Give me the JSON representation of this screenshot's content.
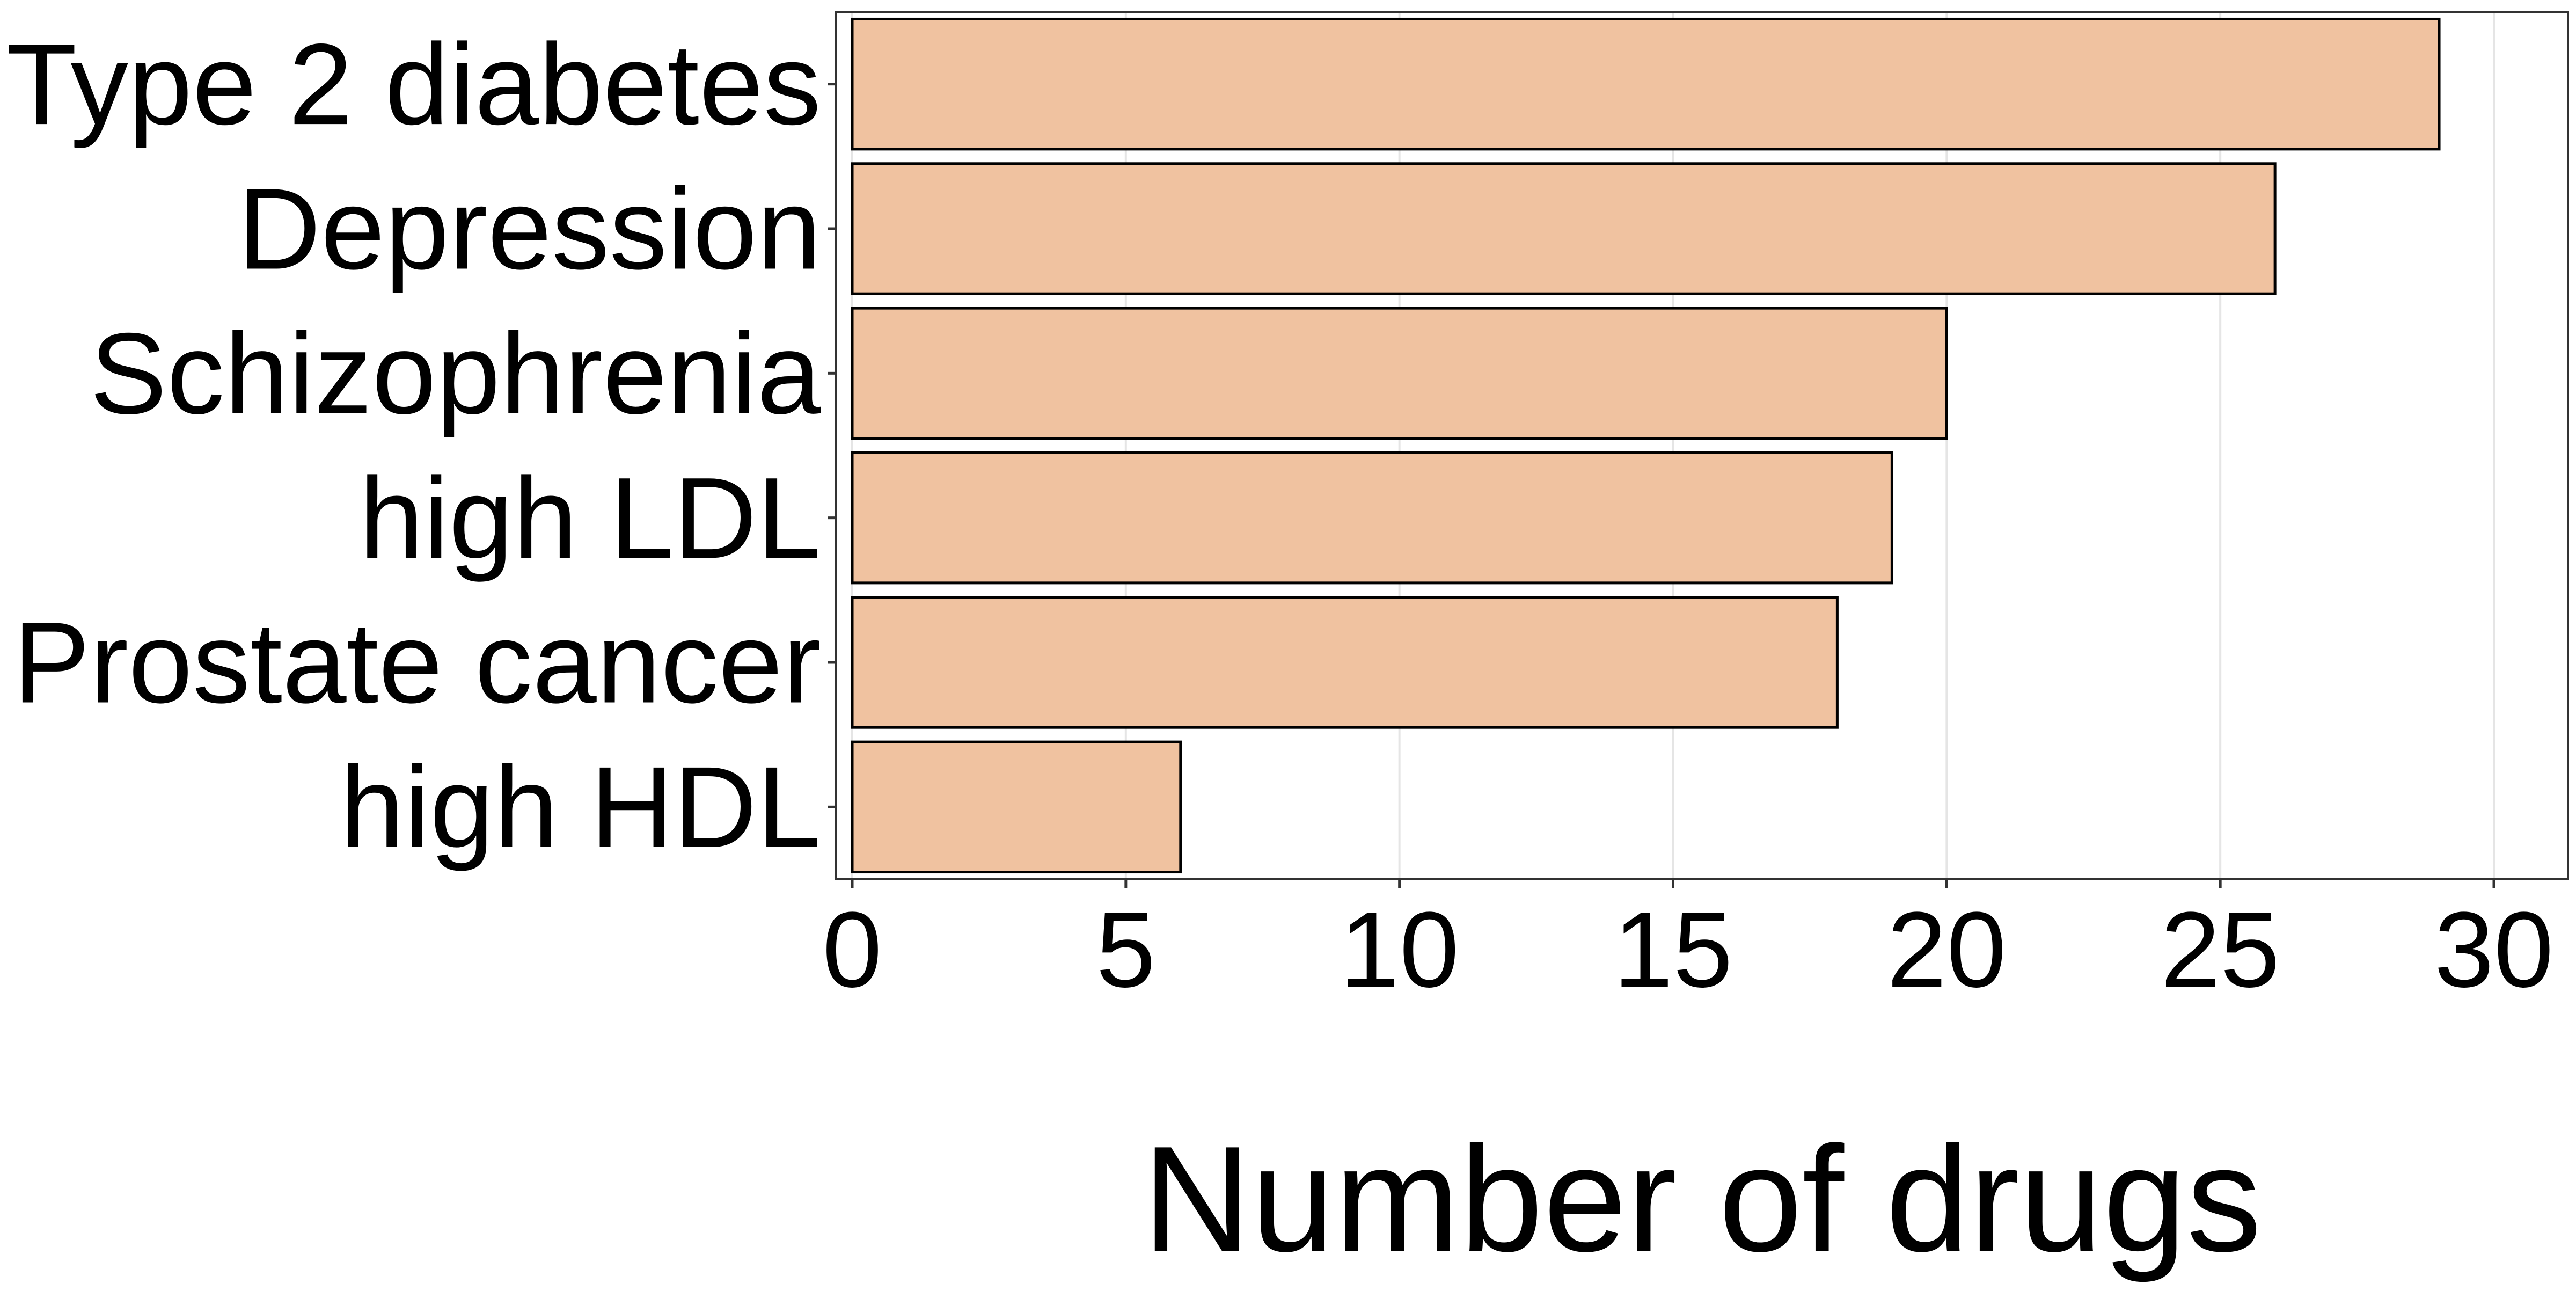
{
  "chart_data": {
    "type": "bar",
    "orientation": "horizontal",
    "categories": [
      "Type 2 diabetes",
      "Depression",
      "Schizophrenia",
      "high LDL",
      "Prostate cancer",
      "high HDL"
    ],
    "values": [
      29,
      26,
      20,
      19,
      18,
      6
    ],
    "title": "",
    "xlabel": "Number of drugs",
    "ylabel": "",
    "xlim": [
      0,
      31
    ],
    "xticks": [
      0,
      5,
      10,
      15,
      20,
      25,
      30
    ],
    "grid": "vertical",
    "legend": "none"
  },
  "colors": {
    "bar_fill": "#F0C2A0",
    "bar_stroke": "#000000",
    "grid": "#E5E5E5",
    "panel_border": "#333333",
    "background": "#FFFFFF"
  }
}
